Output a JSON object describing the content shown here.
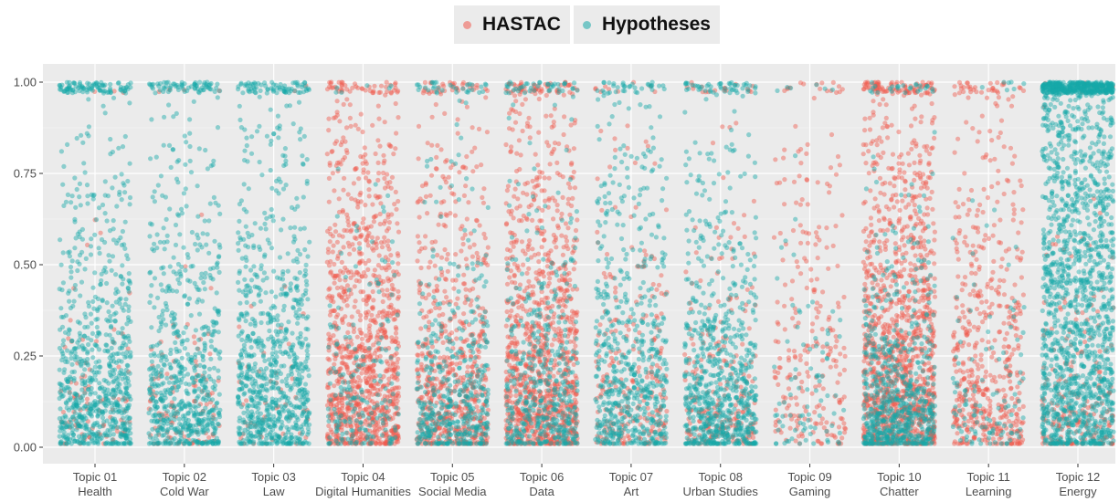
{
  "chart_data": {
    "type": "scatter",
    "title": "",
    "xlabel": "",
    "ylabel": "",
    "ylim": [
      0,
      1
    ],
    "y_ticks": [
      "0.00",
      "0.25",
      "0.50",
      "0.75",
      "1.00"
    ],
    "grid": true,
    "legend_position": "top",
    "categories": [
      {
        "code": "Topic 01",
        "name": "Health"
      },
      {
        "code": "Topic 02",
        "name": "Cold War"
      },
      {
        "code": "Topic 03",
        "name": "Law"
      },
      {
        "code": "Topic 04",
        "name": "Digital Humanities"
      },
      {
        "code": "Topic 05",
        "name": "Social Media"
      },
      {
        "code": "Topic 06",
        "name": "Data"
      },
      {
        "code": "Topic 07",
        "name": "Art"
      },
      {
        "code": "Topic 08",
        "name": "Urban Studies"
      },
      {
        "code": "Topic 09",
        "name": "Gaming"
      },
      {
        "code": "Topic 10",
        "name": "Chatter"
      },
      {
        "code": "Topic 11",
        "name": "Learning"
      },
      {
        "code": "Topic 12",
        "name": "Energy"
      }
    ],
    "series": [
      {
        "name": "HASTAC",
        "color": "#f05a4e",
        "approx_point_counts": [
          90,
          110,
          50,
          1100,
          700,
          1100,
          250,
          250,
          250,
          1300,
          550,
          220
        ],
        "median": [
          0.1,
          0.1,
          0.08,
          0.25,
          0.2,
          0.25,
          0.18,
          0.15,
          0.28,
          0.25,
          0.25,
          0.1
        ]
      },
      {
        "name": "Hypotheses",
        "color": "#16a8a8",
        "approx_point_counts": [
          850,
          750,
          900,
          200,
          500,
          500,
          650,
          800,
          90,
          700,
          120,
          1800
        ],
        "median": [
          0.18,
          0.2,
          0.22,
          0.12,
          0.12,
          0.14,
          0.2,
          0.15,
          0.12,
          0.12,
          0.12,
          0.55
        ]
      }
    ]
  }
}
